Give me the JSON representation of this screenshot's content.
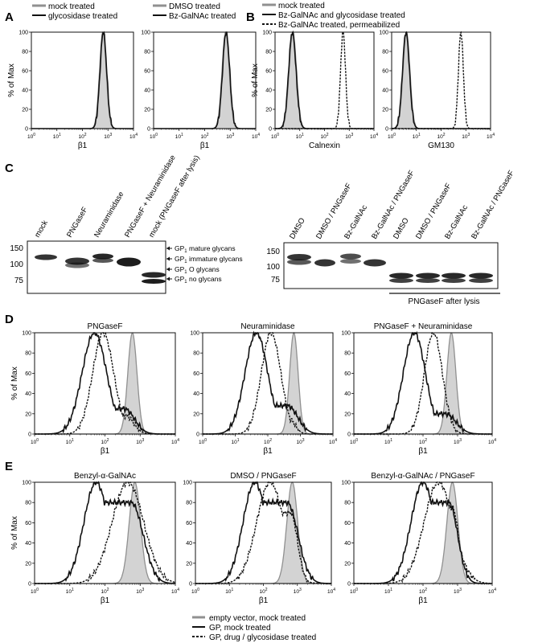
{
  "panel_letters": {
    "A": "A",
    "B": "B",
    "C": "C",
    "D": "D",
    "E": "E"
  },
  "legends": {
    "A1": [
      {
        "label": "mock treated",
        "style": "gray"
      },
      {
        "label": "glycosidase treated",
        "style": "solid"
      }
    ],
    "A2": [
      {
        "label": "DMSO treated",
        "style": "gray"
      },
      {
        "label": "Bz-GalNAc treated",
        "style": "solid"
      }
    ],
    "B": [
      {
        "label": "mock treated",
        "style": "gray"
      },
      {
        "label": "Bz-GalNAc and glycosidase treated",
        "style": "solid"
      },
      {
        "label": "Bz-GalNAc treated, permeabilized",
        "style": "dashed"
      }
    ],
    "bottom": [
      {
        "label": "empty vector, mock treated",
        "style": "gray"
      },
      {
        "label": "GP, mock treated",
        "style": "solid"
      },
      {
        "label": "GP, drug / glycosidase treated",
        "style": "dashed"
      }
    ]
  },
  "axis_common": {
    "ylabel": "% of Max",
    "yticks": [
      "0",
      "20",
      "40",
      "60",
      "80",
      "100"
    ],
    "xtick_base": "10",
    "xtick_exps": [
      "0",
      "1",
      "2",
      "3",
      "4"
    ]
  },
  "colors": {
    "gray_fill": "#d3d3d3",
    "gray_line": "#909090",
    "black": "#111111"
  },
  "blot": {
    "left": {
      "lanes": [
        "mock",
        "PNGaseF",
        "Neuraminidase",
        "PNGaseF + Neuraminidase",
        "mock (PNGaseF after lysis)"
      ],
      "mw": [
        "150",
        "100",
        "75"
      ],
      "annotations": [
        {
          "label": "GP",
          "sub": "1",
          "rest": " mature glycans"
        },
        {
          "label": "GP",
          "sub": "1",
          "rest": " immature glycans"
        },
        {
          "label": "GP",
          "sub": "1",
          "rest": " O glycans"
        },
        {
          "label": "GP",
          "sub": "1",
          "rest": " no glycans"
        }
      ]
    },
    "right": {
      "lanes": [
        "DMSO",
        "DMSO / PNGaseF",
        "Bz-GalNAc",
        "Bz-GalNAc / PNGaseF",
        "DMSO",
        "DMSO / PNGaseF",
        "Bz-GalNAc",
        "Bz-GalNAc / PNGaseF"
      ],
      "mw": [
        "150",
        "100",
        "75"
      ],
      "bracket_label": "PNGaseF after lysis"
    }
  },
  "chart_data": [
    {
      "id": "A1",
      "type": "area",
      "title": "",
      "xlabel": "β1",
      "ylabel": "% of Max",
      "xscale": "log",
      "xlim": [
        1,
        10000
      ],
      "ylim": [
        0,
        100
      ],
      "series": [
        {
          "style": "gray",
          "peak_log": 2.8,
          "width": 0.13,
          "left": [
            0,
            0
          ]
        },
        {
          "style": "solid",
          "peak_log": 2.82,
          "width": 0.13,
          "left": [
            0,
            0
          ]
        }
      ]
    },
    {
      "id": "A2",
      "type": "area",
      "title": "",
      "xlabel": "β1",
      "ylabel": "",
      "xscale": "log",
      "xlim": [
        1,
        10000
      ],
      "ylim": [
        0,
        100
      ],
      "series": [
        {
          "style": "gray",
          "peak_log": 2.82,
          "width": 0.14,
          "left": [
            0,
            0
          ]
        },
        {
          "style": "solid",
          "peak_log": 2.84,
          "width": 0.14,
          "left": [
            0,
            0
          ]
        }
      ]
    },
    {
      "id": "B1",
      "type": "area",
      "title": "",
      "xlabel": "Calnexin",
      "ylabel": "% of Max",
      "xscale": "log",
      "xlim": [
        1,
        10000
      ],
      "ylim": [
        0,
        100
      ],
      "series": [
        {
          "style": "gray",
          "peak_log": 0.72,
          "width": 0.15,
          "left": [
            0,
            0
          ]
        },
        {
          "style": "solid",
          "peak_log": 0.7,
          "width": 0.15,
          "left": [
            0,
            0
          ]
        },
        {
          "style": "dashed",
          "peak_log": 2.75,
          "width": 0.1,
          "left": [
            0,
            0
          ]
        }
      ]
    },
    {
      "id": "B2",
      "type": "area",
      "title": "",
      "xlabel": "GM130",
      "ylabel": "",
      "xscale": "log",
      "xlim": [
        1,
        10000
      ],
      "ylim": [
        0,
        100
      ],
      "series": [
        {
          "style": "gray",
          "peak_log": 0.6,
          "width": 0.14,
          "left": [
            0,
            0
          ]
        },
        {
          "style": "solid",
          "peak_log": 0.58,
          "width": 0.14,
          "left": [
            0,
            0
          ]
        },
        {
          "style": "dashed",
          "peak_log": 2.8,
          "width": 0.1,
          "left": [
            0,
            0
          ]
        }
      ]
    },
    {
      "id": "D1",
      "type": "area",
      "title": "PNGaseF",
      "xlabel": "β1",
      "ylabel": "% of Max",
      "xscale": "log",
      "xlim": [
        1,
        10000
      ],
      "ylim": [
        0,
        100
      ],
      "series": [
        {
          "style": "gray",
          "peak_log": 2.78,
          "width": 0.13,
          "left": [
            0,
            0
          ]
        },
        {
          "style": "solid",
          "peak_log": 1.7,
          "width": 0.35,
          "left": [
            2.55,
            25
          ]
        },
        {
          "style": "dashed",
          "peak_log": 1.95,
          "width": 0.3,
          "left": [
            2.6,
            18
          ]
        }
      ]
    },
    {
      "id": "D2",
      "type": "area",
      "title": "Neuraminidase",
      "xlabel": "β1",
      "ylabel": "",
      "xscale": "log",
      "xlim": [
        1,
        10000
      ],
      "ylim": [
        0,
        100
      ],
      "series": [
        {
          "style": "gray",
          "peak_log": 2.8,
          "width": 0.13,
          "left": [
            0,
            0
          ]
        },
        {
          "style": "solid",
          "peak_log": 1.65,
          "width": 0.35,
          "left": [
            2.6,
            28
          ]
        },
        {
          "style": "dashed",
          "peak_log": 2.1,
          "width": 0.3,
          "left": [
            2.65,
            15
          ]
        }
      ]
    },
    {
      "id": "D3",
      "type": "area",
      "title": "PNGaseF + Neuraminidase",
      "xlabel": "β1",
      "ylabel": "",
      "xscale": "log",
      "xlim": [
        1,
        10000
      ],
      "ylim": [
        0,
        100
      ],
      "series": [
        {
          "style": "gray",
          "peak_log": 2.82,
          "width": 0.13,
          "left": [
            0,
            0
          ]
        },
        {
          "style": "solid",
          "peak_log": 1.75,
          "width": 0.32,
          "left": [
            2.65,
            20
          ]
        },
        {
          "style": "dashed",
          "peak_log": 2.3,
          "width": 0.26,
          "left": [
            2.7,
            10
          ]
        }
      ]
    },
    {
      "id": "E1",
      "type": "area",
      "title": "Benzyl-α-GalNAc",
      "xlabel": "β1",
      "ylabel": "% of Max",
      "xscale": "log",
      "xlim": [
        1,
        10000
      ],
      "ylim": [
        0,
        100
      ],
      "series": [
        {
          "style": "gray",
          "peak_log": 2.85,
          "width": 0.16,
          "left": [
            0,
            0
          ]
        },
        {
          "style": "solid",
          "peak_log": 1.75,
          "width": 0.35,
          "left": [
            2.75,
            80
          ]
        },
        {
          "style": "dashed",
          "peak_log": 2.65,
          "width": 0.45,
          "left": [
            1.95,
            62
          ]
        }
      ]
    },
    {
      "id": "E2",
      "type": "area",
      "title": "DMSO / PNGaseF",
      "xlabel": "β1",
      "ylabel": "",
      "xscale": "log",
      "xlim": [
        1,
        10000
      ],
      "ylim": [
        0,
        100
      ],
      "series": [
        {
          "style": "gray",
          "peak_log": 2.85,
          "width": 0.16,
          "left": [
            0,
            0
          ]
        },
        {
          "style": "solid",
          "peak_log": 1.75,
          "width": 0.35,
          "left": [
            2.7,
            80
          ]
        },
        {
          "style": "dashed",
          "peak_log": 2.2,
          "width": 0.4,
          "left": [
            2.8,
            70
          ]
        }
      ]
    },
    {
      "id": "E3",
      "type": "area",
      "title": "Benzyl-α-GalNAc / PNGaseF",
      "xlabel": "β1",
      "ylabel": "",
      "xscale": "log",
      "xlim": [
        1,
        10000
      ],
      "ylim": [
        0,
        100
      ],
      "series": [
        {
          "style": "gray",
          "peak_log": 2.85,
          "width": 0.16,
          "left": [
            0,
            0
          ]
        },
        {
          "style": "solid",
          "peak_log": 2.0,
          "width": 0.35,
          "left": [
            2.75,
            80
          ]
        },
        {
          "style": "dashed",
          "peak_log": 2.45,
          "width": 0.42,
          "left": [
            2.85,
            75
          ]
        }
      ]
    }
  ]
}
